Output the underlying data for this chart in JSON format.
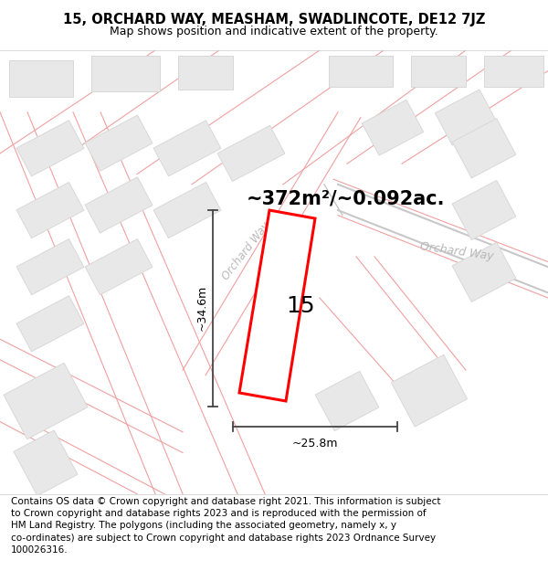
{
  "title": "15, ORCHARD WAY, MEASHAM, SWADLINCOTE, DE12 7JZ",
  "subtitle": "Map shows position and indicative extent of the property.",
  "area_label": "~372m²/~0.092ac.",
  "plot_number": "15",
  "dim_width": "~25.8m",
  "dim_height": "~34.6m",
  "street_label_center": "Orchard Way",
  "street_label_right": "Orchard Way",
  "footnote": "Contains OS data © Crown copyright and database right 2021. This information is subject\nto Crown copyright and database rights 2023 and is reproduced with the permission of\nHM Land Registry. The polygons (including the associated geometry, namely x, y\nco-ordinates) are subject to Crown copyright and database rights 2023 Ordnance Survey\n100026316.",
  "bg_color": "#ffffff",
  "map_bg": "#f8f8f8",
  "road_line_color": "#f0a0a0",
  "road_center_color": "#d8d8d8",
  "building_fill": "#e8e8e8",
  "building_edge": "#d8d8d8",
  "plot_color": "#ff0000",
  "arrow_color": "#444444",
  "text_color": "#000000",
  "street_text_color": "#b8b8b8",
  "title_fontsize": 10.5,
  "subtitle_fontsize": 9,
  "area_fontsize": 15,
  "plot_num_fontsize": 18,
  "dim_fontsize": 9,
  "footnote_fontsize": 7.5
}
